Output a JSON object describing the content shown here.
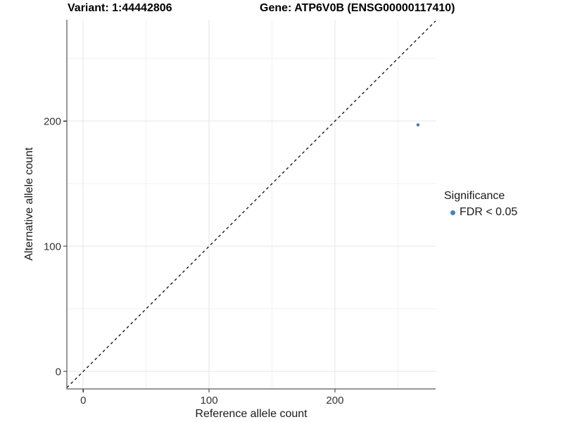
{
  "figure": {
    "background": "#ffffff"
  },
  "chart_data": {
    "type": "scatter",
    "title_left": "Variant: 1:44442806",
    "title_right": "Gene: ATP6V0B (ENSG00000117410)",
    "xlabel": "Reference allele count",
    "ylabel": "Alternative allele count",
    "xlim": [
      -13,
      280
    ],
    "ylim": [
      -14,
      281
    ],
    "x_ticks": [
      0,
      100,
      200
    ],
    "y_ticks": [
      0,
      100,
      200
    ],
    "x_minor_ticks": [
      50,
      150,
      250
    ],
    "y_minor_ticks": [
      50,
      150,
      250
    ],
    "grid": true,
    "series": [
      {
        "name": "FDR < 0.05",
        "color": "#4682B4",
        "points": [
          {
            "x": 266,
            "y": 197
          }
        ]
      }
    ],
    "identity_line": {
      "style": "dashed",
      "slope": 1,
      "intercept": 0,
      "color": "#0d0d0d"
    },
    "legend": {
      "position": "right",
      "title": "Significance",
      "items": [
        {
          "label": "FDR < 0.05",
          "color": "#4682B4"
        }
      ]
    },
    "colors": {
      "grid_major": "#e4e4e4",
      "grid_minor": "#f1f1f1",
      "axis_line": "#333333",
      "tick_mark": "#333333",
      "tick_label": "#333333"
    }
  }
}
